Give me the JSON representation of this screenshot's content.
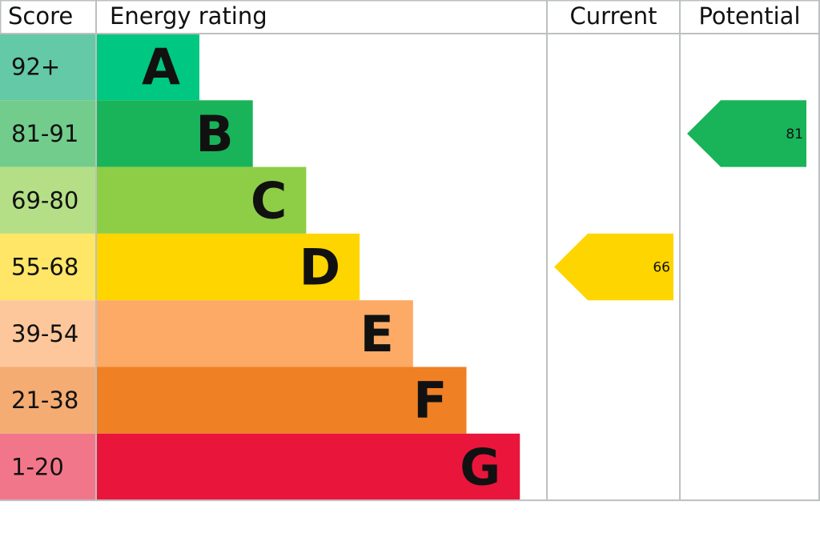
{
  "chart_data": {
    "type": "bar",
    "headers": {
      "score": "Score",
      "rating": "Energy rating",
      "current": "Current",
      "potential": "Potential"
    },
    "bands": [
      {
        "letter": "A",
        "range": "92+",
        "color": "#00c781",
        "score_color": "#64c9a6"
      },
      {
        "letter": "B",
        "range": "81-91",
        "color": "#19b459",
        "score_color": "#72cd8c"
      },
      {
        "letter": "C",
        "range": "69-80",
        "color": "#8dce46",
        "score_color": "#b4df86"
      },
      {
        "letter": "D",
        "range": "55-68",
        "color": "#ffd500",
        "score_color": "#ffe666"
      },
      {
        "letter": "E",
        "range": "39-54",
        "color": "#fcaa65",
        "score_color": "#fdc79b"
      },
      {
        "letter": "F",
        "range": "21-38",
        "color": "#ef8023",
        "score_color": "#f4ac73"
      },
      {
        "letter": "G",
        "range": "1-20",
        "color": "#e9153b",
        "score_color": "#f2768a"
      }
    ],
    "current": {
      "value": 66,
      "band": "D"
    },
    "potential": {
      "value": 81,
      "band": "B"
    }
  }
}
